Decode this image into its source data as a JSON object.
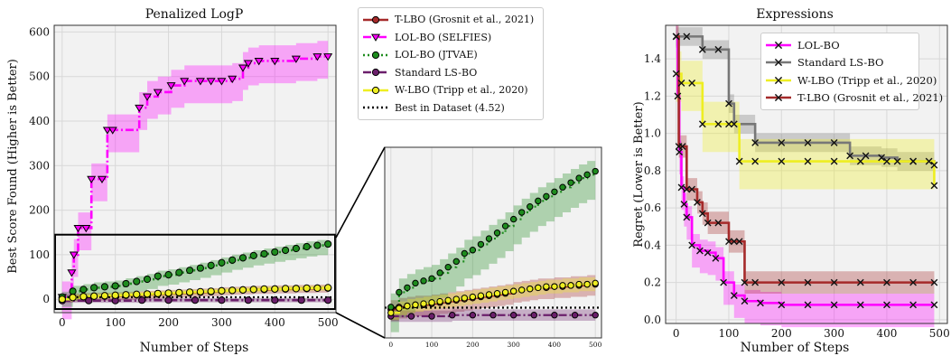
{
  "chart_data": [
    {
      "id": "penalized",
      "type": "line",
      "title": "Penalized LogP",
      "xlabel": "Number of Steps",
      "ylabel": "Best Score Found (Higher is Better)",
      "xlim": [
        -15,
        515
      ],
      "ylim": [
        -30,
        615
      ],
      "xticks": [
        0,
        100,
        200,
        300,
        400,
        500
      ],
      "yticks": [
        0,
        100,
        200,
        300,
        400,
        500,
        600
      ],
      "grid": true,
      "legend_position": "outside-right",
      "zoom_box": {
        "x": [
          -15,
          515
        ],
        "y": [
          -22,
          145
        ]
      },
      "series": [
        {
          "name": "T-LBO (Grosnit et al., 2021)",
          "color": "#a52a2a",
          "marker": "circle",
          "linestyle": "solid",
          "x": [
            0,
            20,
            40,
            60,
            80,
            100,
            120,
            140,
            160,
            180,
            200,
            220,
            240,
            260,
            280,
            300,
            320,
            340,
            360,
            380,
            400,
            420,
            440,
            460,
            480,
            500
          ],
          "y": [
            3,
            5,
            6,
            7,
            7,
            8,
            9,
            10,
            11,
            12,
            13,
            14,
            15,
            16,
            17,
            19,
            20,
            21,
            22,
            22,
            23,
            23,
            24,
            24,
            25,
            25
          ],
          "band": [
            10,
            8
          ]
        },
        {
          "name": "LOL-BO (SELFIES)",
          "color": "#ff00ff",
          "marker": "triangle-down",
          "linestyle": "dashdot",
          "x": [
            0,
            18,
            22,
            30,
            45,
            55,
            75,
            85,
            95,
            145,
            160,
            180,
            205,
            230,
            260,
            280,
            300,
            320,
            340,
            350,
            370,
            400,
            440,
            480,
            500
          ],
          "y": [
            5,
            60,
            100,
            160,
            160,
            270,
            270,
            380,
            380,
            430,
            455,
            465,
            480,
            490,
            490,
            490,
            490,
            495,
            520,
            530,
            535,
            535,
            540,
            545,
            545
          ],
          "band": [
            50,
            35
          ]
        },
        {
          "name": "LOL-BO (JTVAE)",
          "color": "#1e8c1e",
          "marker": "circle",
          "linestyle": "dotted",
          "x": [
            0,
            20,
            40,
            60,
            80,
            100,
            120,
            140,
            160,
            180,
            200,
            220,
            240,
            260,
            280,
            300,
            320,
            340,
            360,
            380,
            400,
            420,
            440,
            460,
            480,
            500
          ],
          "y": [
            5,
            18,
            22,
            26,
            28,
            30,
            35,
            40,
            45,
            52,
            55,
            60,
            65,
            70,
            76,
            82,
            88,
            93,
            98,
            102,
            106,
            110,
            114,
            118,
            121,
            124
          ],
          "band": [
            22,
            12
          ]
        },
        {
          "name": "Standard LS-BO",
          "color": "#6b1f6b",
          "marker": "circle",
          "linestyle": "dashdot",
          "x": [
            0,
            50,
            100,
            150,
            200,
            250,
            300,
            350,
            400,
            450,
            500
          ],
          "y": [
            -3,
            -3,
            -3,
            -2,
            -2,
            -2,
            -2,
            -2,
            -2,
            -2,
            -2
          ],
          "band": [
            5,
            5
          ]
        },
        {
          "name": "W-LBO (Tripp et al., 2020)",
          "color": "#eeee22",
          "marker": "circle",
          "linestyle": "solid",
          "x": [
            0,
            20,
            40,
            60,
            80,
            100,
            120,
            140,
            160,
            180,
            200,
            220,
            240,
            260,
            280,
            300,
            320,
            340,
            360,
            380,
            400,
            420,
            440,
            460,
            480,
            500
          ],
          "y": [
            0,
            4,
            6,
            7,
            8,
            9,
            10,
            11,
            12,
            13,
            14,
            15,
            16,
            17,
            18,
            19,
            20,
            21,
            22,
            23,
            23,
            24,
            24,
            25,
            25,
            26
          ],
          "band": [
            6,
            6
          ]
        }
      ],
      "reference_line": {
        "name": "Best in Dataset (4.52)",
        "y": 4.52,
        "color": "#000000",
        "linestyle": "dotted"
      }
    },
    {
      "id": "inset",
      "type": "line",
      "title": "",
      "xlim": [
        -15,
        515
      ],
      "ylim": [
        -22,
        145
      ],
      "xticks": [
        0,
        100,
        200,
        300,
        400,
        500
      ],
      "yticks": [],
      "grid": true,
      "series": [
        {
          "name": "T-LBO (Grosnit et al., 2021)",
          "color": "#a52a2a",
          "marker": "circle",
          "linestyle": "solid",
          "x": [
            0,
            20,
            40,
            60,
            80,
            100,
            120,
            140,
            160,
            180,
            200,
            220,
            240,
            260,
            280,
            300,
            320,
            340,
            360,
            380,
            400,
            420,
            440,
            460,
            480,
            500
          ],
          "y": [
            3,
            5,
            6,
            7,
            7,
            8,
            9,
            10,
            11,
            12,
            13,
            14,
            15,
            16,
            17,
            19,
            20,
            21,
            22,
            22,
            23,
            23,
            24,
            24,
            25,
            25
          ],
          "band": [
            10,
            8
          ]
        },
        {
          "name": "LOL-BO (JTVAE)",
          "color": "#1e8c1e",
          "marker": "circle",
          "linestyle": "dotted",
          "x": [
            0,
            20,
            40,
            60,
            80,
            100,
            120,
            140,
            160,
            180,
            200,
            220,
            240,
            260,
            280,
            300,
            320,
            340,
            360,
            380,
            400,
            420,
            440,
            460,
            480,
            500
          ],
          "y": [
            5,
            18,
            22,
            26,
            28,
            30,
            35,
            40,
            45,
            52,
            55,
            60,
            65,
            70,
            76,
            82,
            88,
            93,
            98,
            102,
            106,
            110,
            114,
            118,
            121,
            124
          ],
          "band": [
            22,
            12
          ]
        },
        {
          "name": "Standard LS-BO",
          "color": "#6b1f6b",
          "marker": "circle",
          "linestyle": "dashdot",
          "x": [
            0,
            50,
            100,
            150,
            200,
            250,
            300,
            350,
            400,
            450,
            500
          ],
          "y": [
            -3,
            -3,
            -3,
            -2,
            -2,
            -2,
            -2,
            -2,
            -2,
            -2,
            -2
          ],
          "band": [
            5,
            5
          ]
        },
        {
          "name": "W-LBO (Tripp et al., 2020)",
          "color": "#eeee22",
          "marker": "circle",
          "linestyle": "solid",
          "x": [
            0,
            20,
            40,
            60,
            80,
            100,
            120,
            140,
            160,
            180,
            200,
            220,
            240,
            260,
            280,
            300,
            320,
            340,
            360,
            380,
            400,
            420,
            440,
            460,
            480,
            500
          ],
          "y": [
            0,
            4,
            6,
            7,
            8,
            9,
            10,
            11,
            12,
            13,
            14,
            15,
            16,
            17,
            18,
            19,
            20,
            21,
            22,
            23,
            23,
            24,
            24,
            25,
            25,
            26
          ],
          "band": [
            6,
            6
          ]
        }
      ],
      "reference_line": {
        "name": "Best in Dataset (4.52)",
        "y": 4.52,
        "color": "#000000",
        "linestyle": "dotted"
      }
    },
    {
      "id": "expressions",
      "type": "line",
      "title": "Expressions",
      "xlabel": "Number of Steps",
      "ylabel": "Regret (Lower is Better)",
      "xlim": [
        -20,
        515
      ],
      "ylim": [
        -0.02,
        1.58
      ],
      "xticks": [
        0,
        100,
        200,
        300,
        400,
        500
      ],
      "yticks": [
        0.0,
        0.2,
        0.4,
        0.6,
        0.8,
        1.0,
        1.2,
        1.4
      ],
      "ytick_labels": [
        "0.0",
        "0.2",
        "0.4",
        "0.6",
        "0.8",
        "1.0",
        "1.2",
        "1.4"
      ],
      "grid": true,
      "legend_position": "top-right",
      "series": [
        {
          "name": "LOL-BO",
          "color": "#ff00ff",
          "marker": "x",
          "linestyle": "solid",
          "x": [
            0,
            3,
            6,
            10,
            15,
            20,
            30,
            45,
            60,
            75,
            90,
            110,
            130,
            160,
            200,
            250,
            300,
            350,
            400,
            450,
            490
          ],
          "y": [
            1.52,
            1.2,
            0.9,
            0.71,
            0.62,
            0.55,
            0.4,
            0.37,
            0.36,
            0.33,
            0.2,
            0.13,
            0.1,
            0.09,
            0.08,
            0.08,
            0.08,
            0.08,
            0.08,
            0.08,
            0.08
          ],
          "band": [
            0.12,
            0.06
          ]
        },
        {
          "name": "Standard LS-BO",
          "color": "#777777",
          "marker": "x",
          "linestyle": "solid",
          "x": [
            0,
            20,
            50,
            80,
            100,
            110,
            150,
            200,
            250,
            300,
            330,
            360,
            390,
            420,
            450,
            490
          ],
          "y": [
            1.52,
            1.52,
            1.45,
            1.45,
            1.16,
            1.05,
            0.95,
            0.95,
            0.95,
            0.95,
            0.88,
            0.88,
            0.87,
            0.85,
            0.85,
            0.83
          ],
          "band": [
            0.05,
            0.05
          ]
        },
        {
          "name": "W-LBO (Tripp et al., 2020)",
          "color": "#eeee22",
          "marker": "x",
          "linestyle": "solid",
          "x": [
            0,
            10,
            30,
            50,
            80,
            100,
            120,
            150,
            200,
            250,
            300,
            350,
            400,
            450,
            480,
            490
          ],
          "y": [
            1.32,
            1.27,
            1.27,
            1.05,
            1.05,
            1.05,
            0.85,
            0.85,
            0.85,
            0.85,
            0.85,
            0.85,
            0.85,
            0.85,
            0.85,
            0.72
          ],
          "band": [
            0.15,
            0.12
          ]
        },
        {
          "name": "T-LBO (Grosnit et al., 2021)",
          "color": "#a52a2a",
          "marker": "x",
          "linestyle": "solid",
          "x": [
            0,
            5,
            12,
            20,
            30,
            40,
            50,
            60,
            80,
            100,
            110,
            120,
            130,
            150,
            200,
            250,
            300,
            350,
            400,
            450,
            490
          ],
          "y": [
            1.52,
            0.93,
            0.93,
            0.7,
            0.7,
            0.63,
            0.57,
            0.52,
            0.52,
            0.42,
            0.42,
            0.42,
            0.2,
            0.2,
            0.2,
            0.2,
            0.2,
            0.2,
            0.2,
            0.2,
            0.2
          ],
          "band": [
            0.06,
            0.06
          ]
        }
      ]
    }
  ],
  "legends": {
    "left": [
      {
        "label": "T-LBO (Grosnit et al., 2021)",
        "color": "#a52a2a",
        "marker": "circle",
        "dash": ""
      },
      {
        "label": "LOL-BO (SELFIES)",
        "color": "#ff00ff",
        "marker": "triangle-down",
        "dash": "9,3,2,3"
      },
      {
        "label": "LOL-BO (JTVAE)",
        "color": "#1e8c1e",
        "marker": "circle",
        "dash": "2,3"
      },
      {
        "label": "Standard LS-BO",
        "color": "#6b1f6b",
        "marker": "circle",
        "dash": "9,3,2,3"
      },
      {
        "label": "W-LBO (Tripp et al., 2020)",
        "color": "#eeee22",
        "marker": "circle",
        "dash": ""
      },
      {
        "label": "Best in Dataset (4.52)",
        "color": "#000000",
        "marker": "none",
        "dash": "2,3"
      }
    ],
    "right": [
      {
        "label": "LOL-BO",
        "color": "#ff00ff",
        "marker": "x",
        "dash": ""
      },
      {
        "label": "Standard LS-BO",
        "color": "#777777",
        "marker": "x",
        "dash": ""
      },
      {
        "label": "W-LBO (Tripp et al., 2020)",
        "color": "#eeee22",
        "marker": "x",
        "dash": ""
      },
      {
        "label": "T-LBO (Grosnit et al., 2021)",
        "color": "#a52a2a",
        "marker": "x",
        "dash": ""
      }
    ]
  }
}
